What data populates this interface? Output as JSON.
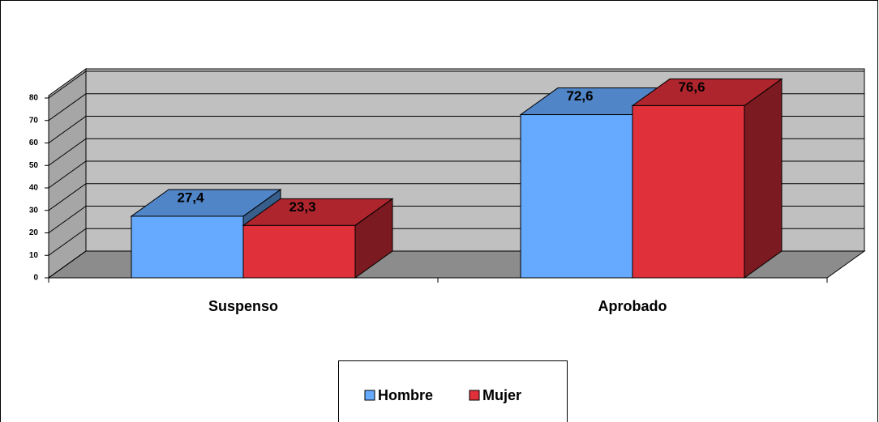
{
  "chart_data": {
    "type": "bar3d",
    "categories": [
      "Suspenso",
      "Aprobado"
    ],
    "series": [
      {
        "name": "Hombre",
        "color": "#66aaff",
        "values": [
          27.4,
          72.6
        ],
        "value_labels": [
          "27,4",
          "72,6"
        ]
      },
      {
        "name": "Mujer",
        "color": "#e0303a",
        "values": [
          23.3,
          76.6
        ],
        "value_labels": [
          "23,3",
          "76,6"
        ]
      }
    ],
    "ylim": [
      0,
      80
    ],
    "yticks": [
      0,
      10,
      20,
      30,
      40,
      50,
      60,
      70,
      80
    ],
    "grid": true,
    "legend": "bottom"
  }
}
